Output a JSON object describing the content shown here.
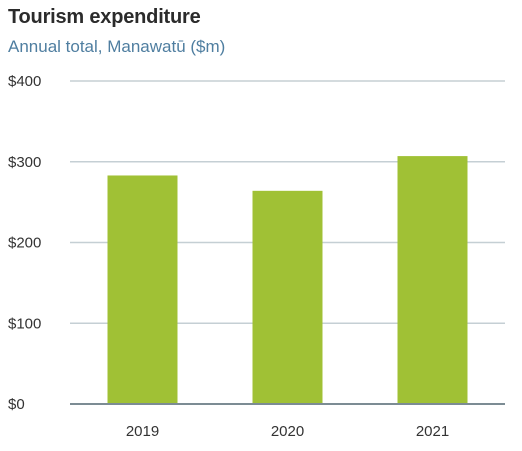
{
  "chart_data": {
    "type": "bar",
    "title": "Tourism expenditure",
    "subtitle": "Annual total, Manawatū ($m)",
    "categories": [
      "2019",
      "2020",
      "2021"
    ],
    "values": [
      283,
      264,
      307
    ],
    "ylim": [
      0,
      400
    ],
    "yticks": [
      0,
      100,
      200,
      300,
      400
    ],
    "ytick_labels": [
      "$0",
      "$100",
      "$200",
      "$300",
      "$400"
    ],
    "grid": true,
    "legend": "none",
    "colors": {
      "bar": "#a0c135",
      "grid": "#c5cfd4",
      "axis": "#7c8c94"
    }
  }
}
